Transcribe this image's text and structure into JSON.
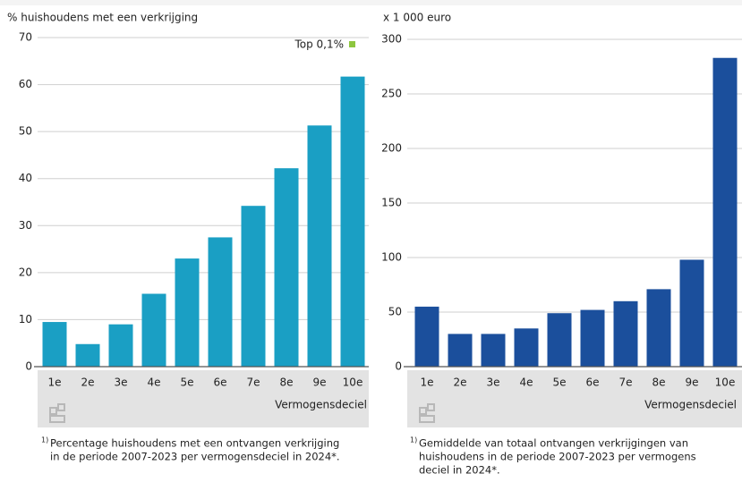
{
  "chart_data": [
    {
      "type": "bar",
      "y_label": "% huishoudens met een verkrijging",
      "x_label": "Vermogensdeciel",
      "categories": [
        "1e",
        "2e",
        "3e",
        "4e",
        "5e",
        "6e",
        "7e",
        "8e",
        "9e",
        "10e"
      ],
      "values": [
        9.5,
        4.8,
        9,
        15.5,
        23,
        27.5,
        34.2,
        42.2,
        51.3,
        61.7
      ],
      "color": "#1a9fc4",
      "ylim": [
        0,
        70
      ],
      "yticks": [
        0,
        10,
        20,
        30,
        40,
        50,
        60,
        70
      ],
      "grid": true,
      "legend_items": [
        {
          "name": "Top 0,1%",
          "color": "#8dc63f"
        }
      ],
      "footnote": {
        "marker": "1)",
        "lines": [
          "Percentage huishoudens met een ontvangen verkrijging",
          "in de periode 2007-2023 per vermogensdeciel in 2024*."
        ]
      }
    },
    {
      "type": "bar",
      "y_label": "x 1 000 euro",
      "x_label": "Vermogensdeciel",
      "categories": [
        "1e",
        "2e",
        "3e",
        "4e",
        "5e",
        "6e",
        "7e",
        "8e",
        "9e",
        "10e"
      ],
      "values": [
        55,
        30,
        30,
        35,
        49,
        52,
        60,
        71,
        98,
        283
      ],
      "color": "#1b4f9c",
      "ylim": [
        0,
        300
      ],
      "yticks": [
        0,
        50,
        100,
        150,
        200,
        250,
        300
      ],
      "grid": true,
      "footnote": {
        "marker": "1)",
        "lines": [
          "Gemiddelde van totaal ontvangen verkrijgingen van",
          "huishoudens in de periode 2007-2023 per vermogens",
          "deciel in 2024*."
        ]
      }
    }
  ]
}
